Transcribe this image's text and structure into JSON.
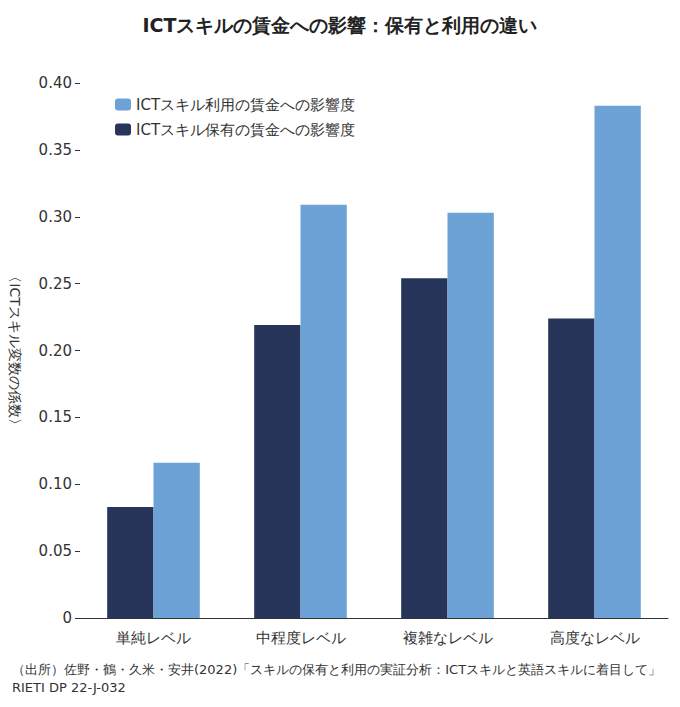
{
  "chart_data": {
    "type": "bar",
    "title": "ICTスキルの賃金への影響：保有と利用の違い",
    "y_label": "〈ICTスキル変数の係数〉",
    "source": "（出所）佐野・鶴・久米・安井(2022)「スキルの保有と利用の実証分析：ICTスキルと英語スキルに着目して」RIETI DP 22-J-032",
    "categories": [
      "単純レベル",
      "中程度レベル",
      "複雑なレベル",
      "高度なレベル"
    ],
    "series": [
      {
        "name": "ICTスキル保有の賃金への影響度",
        "color": "#263559",
        "values": [
          0.083,
          0.219,
          0.254,
          0.224
        ]
      },
      {
        "name": "ICTスキル利用の賃金への影響度",
        "color": "#6da2d6",
        "values": [
          0.116,
          0.309,
          0.303,
          0.383
        ]
      }
    ],
    "ylim": [
      0,
      0.4
    ],
    "yticks": [
      0,
      0.05,
      {
        "value": 0.1,
        "label": "0.10"
      },
      0.15,
      {
        "value": 0.2,
        "label": "0.20"
      },
      0.25,
      {
        "value": 0.3,
        "label": "0.30"
      },
      0.35,
      {
        "value": 0.4,
        "label": "0.40"
      }
    ],
    "grid": false,
    "legend": "upper left"
  }
}
